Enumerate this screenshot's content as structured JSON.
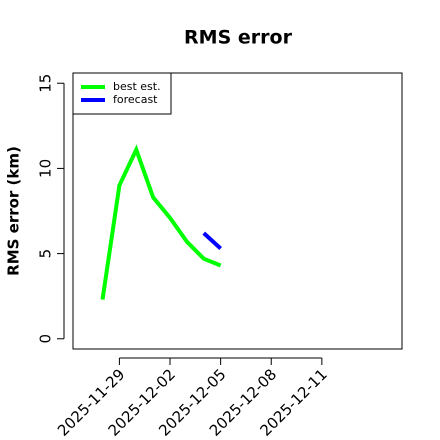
{
  "chart_data": {
    "type": "line",
    "title": "RMS error",
    "ylabel": "RMS error (km)",
    "x": [
      "2025-11-28",
      "2025-11-29",
      "2025-11-30",
      "2025-12-01",
      "2025-12-02",
      "2025-12-03",
      "2025-12-04",
      "2025-12-05"
    ],
    "series": [
      {
        "name": "best est.",
        "color": "#00ff00",
        "values": [
          2.3,
          9.0,
          11.1,
          8.3,
          7.1,
          5.7,
          4.7,
          4.3
        ]
      },
      {
        "name": "forecast",
        "color": "#0000ff",
        "values": [
          null,
          null,
          null,
          null,
          null,
          null,
          6.2,
          5.3
        ]
      }
    ],
    "xlim": [
      "2025-11-26T06:00Z",
      "2025-12-15T18:00Z"
    ],
    "xticks": [
      "2025-11-29",
      "2025-12-02",
      "2025-12-05",
      "2025-12-08",
      "2025-12-11"
    ],
    "ylim": [
      -0.6,
      15.6
    ],
    "yticks": [
      0,
      5,
      10,
      15
    ],
    "legend": "top-left"
  }
}
